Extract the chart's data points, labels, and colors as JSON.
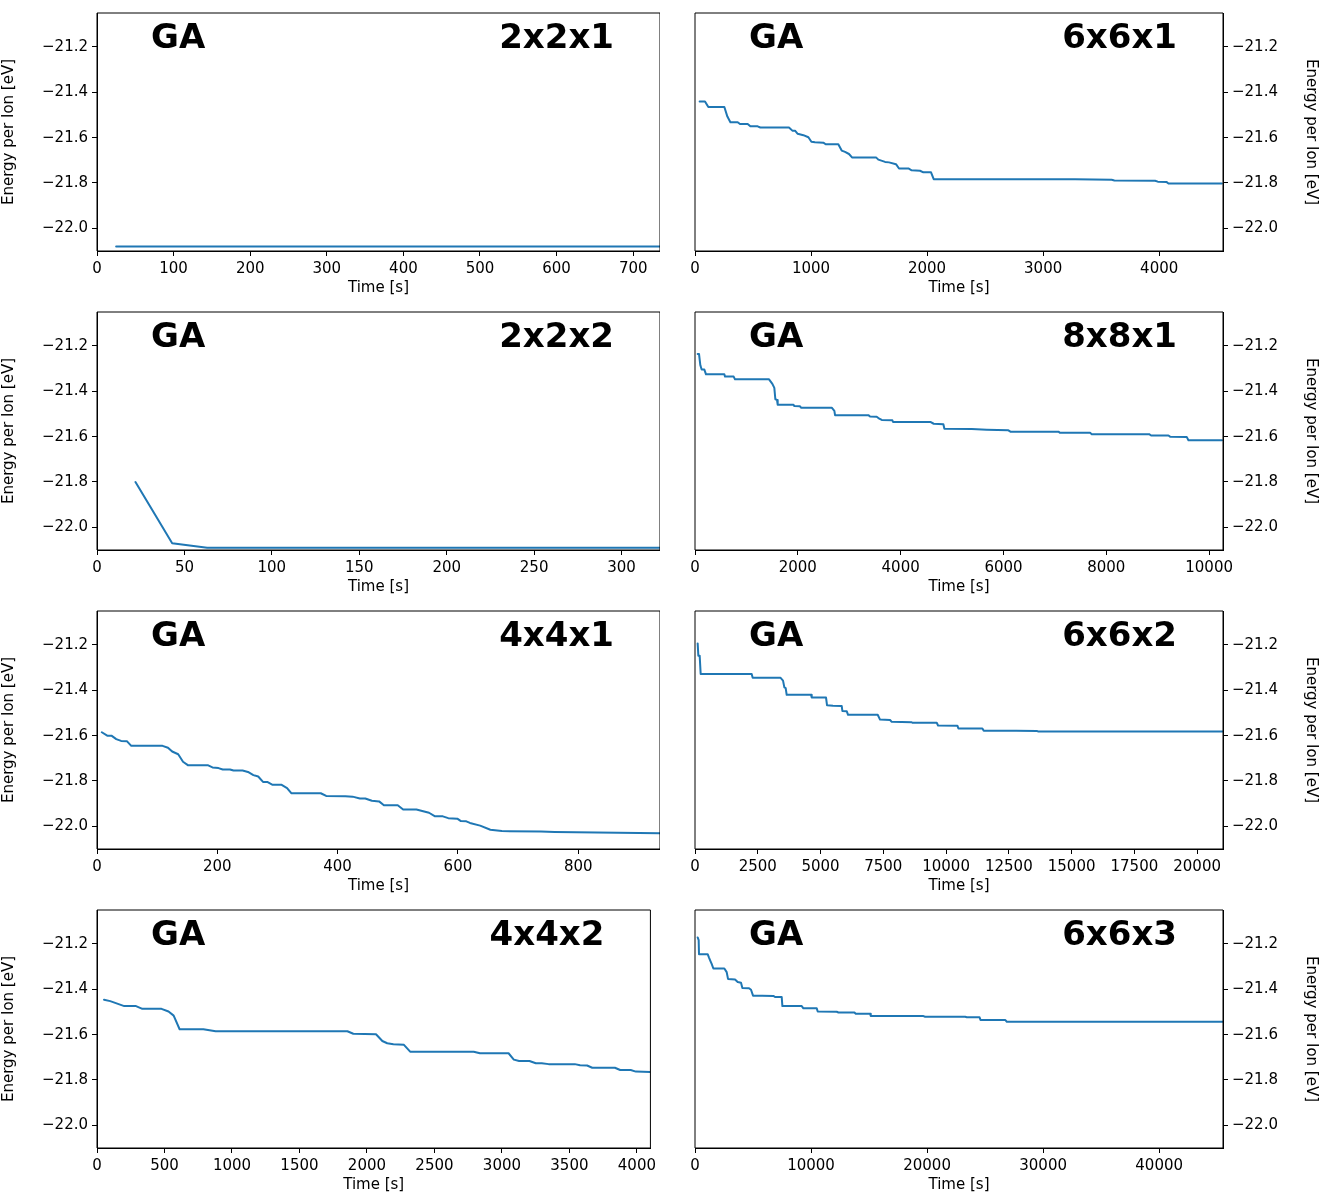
{
  "chart_data": [
    {
      "type": "line",
      "annotations": [
        "GA",
        "2x2x1"
      ],
      "xlabel": "Time [s]",
      "ylabel": "Energy per Ion [eV]",
      "xlim": [
        0,
        735
      ],
      "xticks": [
        0,
        100,
        200,
        300,
        400,
        500,
        600,
        700
      ],
      "ylim": [
        -22.1,
        -21.05
      ],
      "yticks": [
        {
          "value": -22.0,
          "label": "−22.0"
        },
        {
          "value": -21.8,
          "label": "−21.8"
        },
        {
          "value": -21.6,
          "label": "−21.6"
        },
        {
          "value": -21.4,
          "label": "−21.4"
        },
        {
          "value": -21.2,
          "label": "−21.2"
        }
      ],
      "series": [
        {
          "color": "#1f77b4",
          "x": [
            25,
            735
          ],
          "values": [
            -22.08,
            -22.08
          ]
        }
      ]
    },
    {
      "type": "line",
      "annotations": [
        "GA",
        "6x6x1"
      ],
      "xlabel": "Time [s]",
      "y2label": "Energy per Ion [eV]",
      "xlim": [
        0,
        4550
      ],
      "xticks": [
        0,
        1000,
        2000,
        3000,
        4000
      ],
      "y2lim": [
        -22.1,
        -21.05
      ],
      "y2ticks": [
        {
          "value": -22.0,
          "label": "−22.0"
        },
        {
          "value": -21.8,
          "label": "−21.8"
        },
        {
          "value": -21.6,
          "label": "−21.6"
        },
        {
          "value": -21.4,
          "label": "−21.4"
        },
        {
          "value": -21.2,
          "label": "−21.2"
        }
      ],
      "series": [
        {
          "color": "#1f77b4",
          "axis": "y2",
          "x": [
            40,
            86,
            115,
            253,
            279,
            305,
            368,
            388,
            454,
            477,
            540,
            563,
            810,
            839,
            862,
            885,
            934,
            977,
            1003,
            1034,
            1106,
            1126,
            1235,
            1264,
            1293,
            1327,
            1353,
            1560,
            1580,
            1638,
            1672,
            1732,
            1758,
            1839,
            1867,
            1939,
            1968,
            2034,
            2057,
            3275,
            3591,
            3614,
            3965,
            3988,
            4065,
            4080,
            4540
          ],
          "values": [
            -21.44,
            -21.44,
            -21.465,
            -21.465,
            -21.507,
            -21.532,
            -21.532,
            -21.54,
            -21.54,
            -21.55,
            -21.55,
            -21.555,
            -21.555,
            -21.569,
            -21.569,
            -21.583,
            -21.589,
            -21.598,
            -21.618,
            -21.62,
            -21.622,
            -21.629,
            -21.629,
            -21.657,
            -21.663,
            -21.672,
            -21.687,
            -21.687,
            -21.697,
            -21.707,
            -21.709,
            -21.717,
            -21.736,
            -21.736,
            -21.744,
            -21.746,
            -21.753,
            -21.753,
            -21.783,
            -21.784,
            -21.786,
            -21.789,
            -21.79,
            -21.794,
            -21.796,
            -21.802,
            -21.802
          ]
        }
      ]
    },
    {
      "type": "line",
      "annotations": [
        "GA",
        "2x2x2"
      ],
      "xlabel": "Time [s]",
      "ylabel": "Energy per Ion [eV]",
      "xlim": [
        0,
        322
      ],
      "xticks": [
        0,
        50,
        100,
        150,
        200,
        250,
        300
      ],
      "ylim": [
        -22.1,
        -21.05
      ],
      "yticks": [
        {
          "value": -22.0,
          "label": "−22.0"
        },
        {
          "value": -21.8,
          "label": "−21.8"
        },
        {
          "value": -21.6,
          "label": "−21.6"
        },
        {
          "value": -21.4,
          "label": "−21.4"
        },
        {
          "value": -21.2,
          "label": "−21.2"
        }
      ],
      "series": [
        {
          "color": "#1f77b4",
          "x": [
            22,
            43,
            63,
            322
          ],
          "values": [
            -21.8,
            -22.07,
            -22.09,
            -22.09
          ]
        }
      ]
    },
    {
      "type": "line",
      "annotations": [
        "GA",
        "8x8x1"
      ],
      "xlabel": "Time [s]",
      "y2label": "Energy per Ion [eV]",
      "xlim": [
        0,
        10270
      ],
      "xticks": [
        0,
        2000,
        4000,
        6000,
        8000,
        10000
      ],
      "y2lim": [
        -22.1,
        -21.05
      ],
      "y2ticks": [
        {
          "value": -22.0,
          "label": "−22.0"
        },
        {
          "value": -21.8,
          "label": "−21.8"
        },
        {
          "value": -21.6,
          "label": "−21.6"
        },
        {
          "value": -21.4,
          "label": "−21.4"
        },
        {
          "value": -21.2,
          "label": "−21.2"
        }
      ],
      "series": [
        {
          "color": "#1f77b4",
          "axis": "y2",
          "x": [
            52,
            78,
            104,
            130,
            182,
            214,
            571,
            584,
            752,
            778,
            1440,
            1505,
            1543,
            1563,
            1595,
            1608,
            1913,
            1933,
            2043,
            2062,
            2659,
            2711,
            2724,
            3372,
            3405,
            3534,
            3567,
            3632,
            3839,
            3852,
            4578,
            4643,
            4831,
            4851,
            5383,
            5674,
            6096,
            6135,
            7069,
            7101,
            7685,
            7717,
            8833,
            8872,
            9209,
            9241,
            9566,
            9598,
            10250
          ],
          "values": [
            -21.235,
            -21.235,
            -21.285,
            -21.304,
            -21.304,
            -21.325,
            -21.325,
            -21.335,
            -21.335,
            -21.347,
            -21.347,
            -21.367,
            -21.385,
            -21.435,
            -21.438,
            -21.459,
            -21.459,
            -21.465,
            -21.466,
            -21.472,
            -21.472,
            -21.486,
            -21.505,
            -21.505,
            -21.511,
            -21.512,
            -21.518,
            -21.526,
            -21.528,
            -21.535,
            -21.535,
            -21.543,
            -21.545,
            -21.565,
            -21.566,
            -21.569,
            -21.572,
            -21.578,
            -21.578,
            -21.583,
            -21.583,
            -21.589,
            -21.589,
            -21.595,
            -21.595,
            -21.6,
            -21.602,
            -21.616,
            -21.616
          ]
        }
      ]
    },
    {
      "type": "line",
      "annotations": [
        "GA",
        "4x4x1"
      ],
      "xlabel": "Time [s]",
      "ylabel": "Energy per Ion [eV]",
      "xlim": [
        0,
        936
      ],
      "xticks": [
        0,
        200,
        400,
        600,
        800
      ],
      "ylim": [
        -22.1,
        -21.05
      ],
      "yticks": [
        {
          "value": -22.0,
          "label": "−22.0"
        },
        {
          "value": -21.8,
          "label": "−21.8"
        },
        {
          "value": -21.6,
          "label": "−21.6"
        },
        {
          "value": -21.4,
          "label": "−21.4"
        },
        {
          "value": -21.2,
          "label": "−21.2"
        }
      ],
      "series": [
        {
          "color": "#1f77b4",
          "x": [
            8,
            17,
            24,
            32,
            40,
            50,
            57,
            109,
            118,
            125,
            135,
            143,
            151,
            184,
            192,
            202,
            209,
            221,
            227,
            242,
            251,
            260,
            268,
            276,
            283,
            292,
            307,
            316,
            323,
            372,
            381,
            413,
            425,
            437,
            446,
            457,
            469,
            477,
            500,
            509,
            531,
            552,
            562,
            575,
            584,
            599,
            605,
            614,
            620,
            637,
            654,
            673,
            738,
            761,
            936
          ],
          "values": [
            -21.585,
            -21.6,
            -21.6,
            -21.615,
            -21.623,
            -21.625,
            -21.645,
            -21.645,
            -21.653,
            -21.67,
            -21.682,
            -21.715,
            -21.73,
            -21.73,
            -21.74,
            -21.743,
            -21.749,
            -21.749,
            -21.754,
            -21.754,
            -21.76,
            -21.774,
            -21.78,
            -21.804,
            -21.804,
            -21.817,
            -21.817,
            -21.831,
            -21.854,
            -21.854,
            -21.866,
            -21.867,
            -21.869,
            -21.877,
            -21.877,
            -21.887,
            -21.89,
            -21.907,
            -21.907,
            -21.926,
            -21.926,
            -21.94,
            -21.956,
            -21.956,
            -21.964,
            -21.966,
            -21.977,
            -21.978,
            -21.985,
            -21.997,
            -22.015,
            -22.021,
            -22.023,
            -22.025,
            -22.03
          ]
        }
      ]
    },
    {
      "type": "line",
      "annotations": [
        "GA",
        "6x6x2"
      ],
      "xlabel": "Time [s]",
      "y2label": "Energy per Ion [eV]",
      "xlim": [
        0,
        21030
      ],
      "xticks": [
        0,
        2500,
        5000,
        7500,
        10000,
        12500,
        15000,
        17500,
        20000
      ],
      "y2lim": [
        -22.1,
        -21.05
      ],
      "y2ticks": [
        {
          "value": -22.0,
          "label": "−22.0"
        },
        {
          "value": -21.8,
          "label": "−21.8"
        },
        {
          "value": -21.6,
          "label": "−21.6"
        },
        {
          "value": -21.4,
          "label": "−21.4"
        },
        {
          "value": -21.2,
          "label": "−21.2"
        }
      ],
      "series": [
        {
          "color": "#1f77b4",
          "axis": "y2",
          "x": [
            106,
            133,
            186,
            226,
            2258,
            2297,
            3400,
            3506,
            3559,
            3612,
            3652,
            4621,
            4648,
            5219,
            5259,
            5498,
            5843,
            5870,
            6042,
            6096,
            7277,
            7370,
            7769,
            7835,
            8632,
            8659,
            9628,
            9681,
            10451,
            10491,
            11447,
            11500,
            13612,
            13678,
            21030
          ],
          "values": [
            -21.193,
            -21.247,
            -21.247,
            -21.328,
            -21.328,
            -21.344,
            -21.344,
            -21.357,
            -21.387,
            -21.39,
            -21.42,
            -21.42,
            -21.432,
            -21.432,
            -21.466,
            -21.468,
            -21.469,
            -21.491,
            -21.492,
            -21.508,
            -21.508,
            -21.529,
            -21.531,
            -21.539,
            -21.541,
            -21.543,
            -21.543,
            -21.555,
            -21.556,
            -21.568,
            -21.568,
            -21.578,
            -21.579,
            -21.582,
            -21.582
          ]
        }
      ]
    },
    {
      "type": "line",
      "annotations": [
        "GA",
        "4x4x2"
      ],
      "xlabel": "Time [s]",
      "ylabel": "Energy per Ion [eV]",
      "xlim": [
        0,
        4100
      ],
      "xticks": [
        0,
        500,
        1000,
        1500,
        2000,
        2500,
        3000,
        3500,
        4000
      ],
      "ylim": [
        -22.1,
        -21.05
      ],
      "yticks": [
        {
          "value": -22.0,
          "label": "−22.0"
        },
        {
          "value": -21.8,
          "label": "−21.8"
        },
        {
          "value": -21.6,
          "label": "−21.6"
        },
        {
          "value": -21.4,
          "label": "−21.4"
        },
        {
          "value": -21.2,
          "label": "−21.2"
        }
      ],
      "series": [
        {
          "color": "#1f77b4",
          "x": [
            52,
            98,
            202,
            289,
            336,
            478,
            530,
            568,
            612,
            788,
            879,
            1855,
            1899,
            2067,
            2114,
            2150,
            2196,
            2274,
            2320,
            2791,
            2837,
            3049,
            3088,
            3127,
            3204,
            3251,
            3295,
            3346,
            3540,
            3579,
            3631,
            3669,
            3837,
            3876,
            3954,
            3992,
            4100
          ],
          "values": [
            -21.446,
            -21.452,
            -21.474,
            -21.474,
            -21.486,
            -21.486,
            -21.498,
            -21.516,
            -21.576,
            -21.576,
            -21.585,
            -21.585,
            -21.596,
            -21.598,
            -21.628,
            -21.638,
            -21.642,
            -21.645,
            -21.675,
            -21.675,
            -21.682,
            -21.682,
            -21.71,
            -21.716,
            -21.716,
            -21.726,
            -21.726,
            -21.73,
            -21.73,
            -21.735,
            -21.736,
            -21.746,
            -21.746,
            -21.756,
            -21.756,
            -21.763,
            -21.765
          ]
        }
      ]
    },
    {
      "type": "line",
      "annotations": [
        "GA",
        "6x6x3"
      ],
      "xlabel": "Time [s]",
      "y2label": "Energy per Ion [eV]",
      "xlim": [
        0,
        45500
      ],
      "xticks": [
        0,
        10000,
        20000,
        30000,
        40000
      ],
      "y2lim": [
        -22.1,
        -21.05
      ],
      "y2ticks": [
        {
          "value": -22.0,
          "label": "−22.0"
        },
        {
          "value": -21.8,
          "label": "−21.8"
        },
        {
          "value": -21.6,
          "label": "−21.6"
        },
        {
          "value": -21.4,
          "label": "−21.4"
        },
        {
          "value": -21.2,
          "label": "−21.2"
        }
      ],
      "series": [
        {
          "color": "#1f77b4",
          "axis": "y2",
          "x": [
            230,
            316,
            345,
            1092,
            1207,
            1322,
            1437,
            1581,
            2529,
            2730,
            2845,
            3449,
            3679,
            3966,
            4081,
            4656,
            4828,
            5001,
            6754,
            6898,
            7472,
            7530,
            9197,
            9341,
            10490,
            10576,
            12215,
            12358,
            13738,
            13853,
            15089,
            15146,
            19687,
            19831,
            23279,
            23423,
            24515,
            24601,
            26728,
            26872,
            45500
          ],
          "values": [
            -21.171,
            -21.183,
            -21.245,
            -21.245,
            -21.26,
            -21.274,
            -21.288,
            -21.308,
            -21.308,
            -21.324,
            -21.354,
            -21.357,
            -21.368,
            -21.371,
            -21.394,
            -21.395,
            -21.402,
            -21.428,
            -21.429,
            -21.434,
            -21.434,
            -21.474,
            -21.474,
            -21.484,
            -21.484,
            -21.498,
            -21.499,
            -21.502,
            -21.502,
            -21.508,
            -21.508,
            -21.518,
            -21.518,
            -21.521,
            -21.521,
            -21.523,
            -21.523,
            -21.535,
            -21.535,
            -21.543,
            -21.543
          ]
        }
      ]
    }
  ]
}
